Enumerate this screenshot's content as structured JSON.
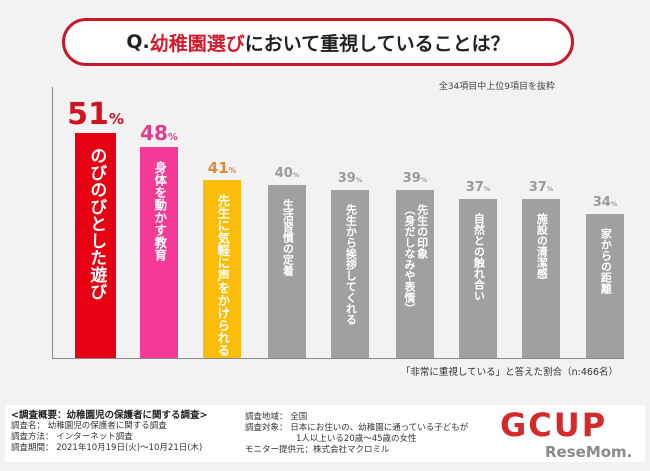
{
  "title": {
    "prefix": "Q. ",
    "highlight": "幼稚園選び",
    "suffix": "において重視していることは？"
  },
  "note": "全34項目中上位9項目を抜粋",
  "base_note": "「非常に重視している」と答えた割合（n:466名）",
  "chart_data": {
    "type": "bar",
    "unit": "%",
    "categories": [
      "のびのびとした遊び",
      "身体を動かす教育",
      "先生に気軽に声をかけられる",
      "生活習慣の定着",
      "先生から挨拶してくれる",
      "先生の印象\n（身だしなみや表情）",
      "自然との触れ合い",
      "施設の清潔感",
      "家からの距離"
    ],
    "values": [
      51,
      48,
      41,
      40,
      39,
      39,
      37,
      37,
      34
    ],
    "colors": [
      "#e60012",
      "#f43a96",
      "#fbbd0a",
      "#a0a0a0",
      "#a0a0a0",
      "#a0a0a0",
      "#a0a0a0",
      "#a0a0a0",
      "#a0a0a0"
    ],
    "label_colors": [
      "#d0141f",
      "#de3e8f",
      "#e08a3a",
      "#9a9a9a",
      "#9a9a9a",
      "#9a9a9a",
      "#9a9a9a",
      "#9a9a9a",
      "#9a9a9a"
    ]
  },
  "footer": {
    "heading": "<調査概要：幼稚園児の保護者に関する調査>",
    "left": [
      "調査名：  幼稚園児の保護者に関する調査",
      "調査方法：  インターネット調査",
      "調査期間：  2021年10月19日(火)～10月21日(木)"
    ],
    "right": [
      "調査地域：  全国",
      "調査対象：  日本にお住いの、幼稚園に通っている子どもが",
      "　　　　　　1人以上いる20歳～45歳の女性",
      "モニター提供元：株式会社マクロミル"
    ],
    "logo": "GCUP",
    "watermark": "ReseMom."
  }
}
